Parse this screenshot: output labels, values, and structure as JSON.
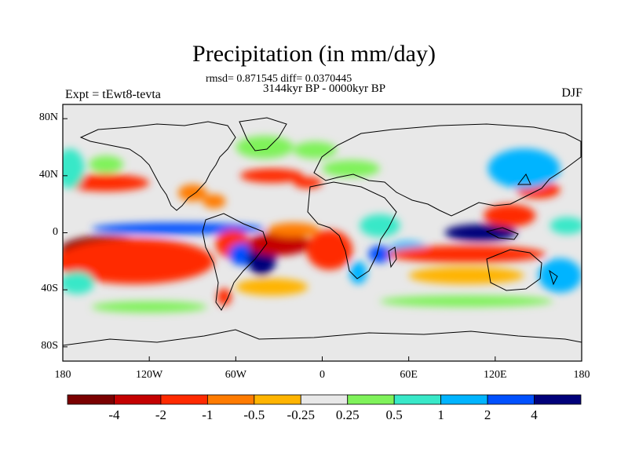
{
  "title": "Precipitation (in mm/day)",
  "stats": "rmsd= 0.871545 diff= 0.0370445",
  "period": "3144kyr BP - 0000kyr BP",
  "experiment": "Expt = tEwt8-tevta",
  "season": "DJF",
  "axes": {
    "lat_ticks": [
      {
        "label": "80N",
        "value": 80
      },
      {
        "label": "40N",
        "value": 40
      },
      {
        "label": "0",
        "value": 0
      },
      {
        "label": "40S",
        "value": -40
      },
      {
        "label": "80S",
        "value": -80
      }
    ],
    "lon_ticks": [
      {
        "label": "180",
        "value": -180
      },
      {
        "label": "120W",
        "value": -120
      },
      {
        "label": "60W",
        "value": -60
      },
      {
        "label": "0",
        "value": 0
      },
      {
        "label": "60E",
        "value": 60
      },
      {
        "label": "120E",
        "value": 120
      },
      {
        "label": "180",
        "value": 180
      }
    ],
    "lat_range": [
      -90,
      90
    ],
    "lon_range": [
      -180,
      180
    ]
  },
  "colorbar": {
    "colors": [
      "#7a0000",
      "#c40000",
      "#ff2a00",
      "#ff7b00",
      "#ffb400",
      "#e8e8e8",
      "#7ff25a",
      "#38e8c8",
      "#00b4ff",
      "#0050ff",
      "#00007a"
    ],
    "labels": [
      "-4",
      "-2",
      "-1",
      "-0.5",
      "-0.25",
      "0.25",
      "0.5",
      "1",
      "2",
      "4"
    ]
  },
  "anomaly_regions": [
    {
      "lon": -150,
      "lat": -12,
      "rx": 32,
      "ry": 10,
      "level": 0
    },
    {
      "lon": -130,
      "lat": -20,
      "rx": 55,
      "ry": 16,
      "level": 2
    },
    {
      "lon": -150,
      "lat": 35,
      "rx": 30,
      "ry": 6,
      "level": 2
    },
    {
      "lon": -175,
      "lat": 45,
      "rx": 10,
      "ry": 14,
      "level": 7
    },
    {
      "lon": -150,
      "lat": 48,
      "rx": 12,
      "ry": 6,
      "level": 6
    },
    {
      "lon": -170,
      "lat": -35,
      "rx": 12,
      "ry": 8,
      "level": 7
    },
    {
      "lon": -100,
      "lat": 3,
      "rx": 60,
      "ry": 4,
      "level": 9
    },
    {
      "lon": -90,
      "lat": 28,
      "rx": 10,
      "ry": 6,
      "level": 3
    },
    {
      "lon": -75,
      "lat": 22,
      "rx": 8,
      "ry": 5,
      "level": 3
    },
    {
      "lon": -62,
      "lat": -8,
      "rx": 12,
      "ry": 10,
      "level": 2
    },
    {
      "lon": -55,
      "lat": -15,
      "rx": 10,
      "ry": 8,
      "level": 9
    },
    {
      "lon": -68,
      "lat": -45,
      "rx": 5,
      "ry": 6,
      "level": 2
    },
    {
      "lon": -42,
      "lat": -18,
      "rx": 10,
      "ry": 12,
      "level": 10
    },
    {
      "lon": -30,
      "lat": -8,
      "rx": 22,
      "ry": 8,
      "level": 1
    },
    {
      "lon": -35,
      "lat": -38,
      "rx": 25,
      "ry": 6,
      "level": 4
    },
    {
      "lon": 5,
      "lat": -12,
      "rx": 16,
      "ry": 14,
      "level": 2
    },
    {
      "lon": -20,
      "lat": 2,
      "rx": 18,
      "ry": 5,
      "level": 3
    },
    {
      "lon": -35,
      "lat": 40,
      "rx": 22,
      "ry": 5,
      "level": 2
    },
    {
      "lon": -40,
      "lat": 60,
      "rx": 20,
      "ry": 8,
      "level": 6
    },
    {
      "lon": -5,
      "lat": 58,
      "rx": 15,
      "ry": 6,
      "level": 6
    },
    {
      "lon": 25,
      "lat": -28,
      "rx": 6,
      "ry": 8,
      "level": 8
    },
    {
      "lon": 40,
      "lat": -15,
      "rx": 8,
      "ry": 6,
      "level": 9
    },
    {
      "lon": 40,
      "lat": 5,
      "rx": 14,
      "ry": 8,
      "level": 7
    },
    {
      "lon": 60,
      "lat": -12,
      "rx": 14,
      "ry": 6,
      "level": 8
    },
    {
      "lon": 100,
      "lat": -15,
      "rx": 55,
      "ry": 6,
      "level": 2
    },
    {
      "lon": 100,
      "lat": -30,
      "rx": 40,
      "ry": 6,
      "level": 4
    },
    {
      "lon": 110,
      "lat": 0,
      "rx": 25,
      "ry": 6,
      "level": 10
    },
    {
      "lon": 130,
      "lat": 12,
      "rx": 18,
      "ry": 8,
      "level": 2
    },
    {
      "lon": 150,
      "lat": 30,
      "rx": 15,
      "ry": 6,
      "level": 2
    },
    {
      "lon": 140,
      "lat": 45,
      "rx": 25,
      "ry": 14,
      "level": 8
    },
    {
      "lon": 165,
      "lat": -30,
      "rx": 15,
      "ry": 12,
      "level": 8
    },
    {
      "lon": 170,
      "lat": 5,
      "rx": 12,
      "ry": 6,
      "level": 7
    },
    {
      "lon": 100,
      "lat": -48,
      "rx": 60,
      "ry": 4,
      "level": 6
    },
    {
      "lon": -120,
      "lat": -52,
      "rx": 40,
      "ry": 4,
      "level": 6
    },
    {
      "lon": 20,
      "lat": 45,
      "rx": 20,
      "ry": 6,
      "level": 6
    },
    {
      "lon": -10,
      "lat": 35,
      "rx": 10,
      "ry": 4,
      "level": 2
    }
  ]
}
